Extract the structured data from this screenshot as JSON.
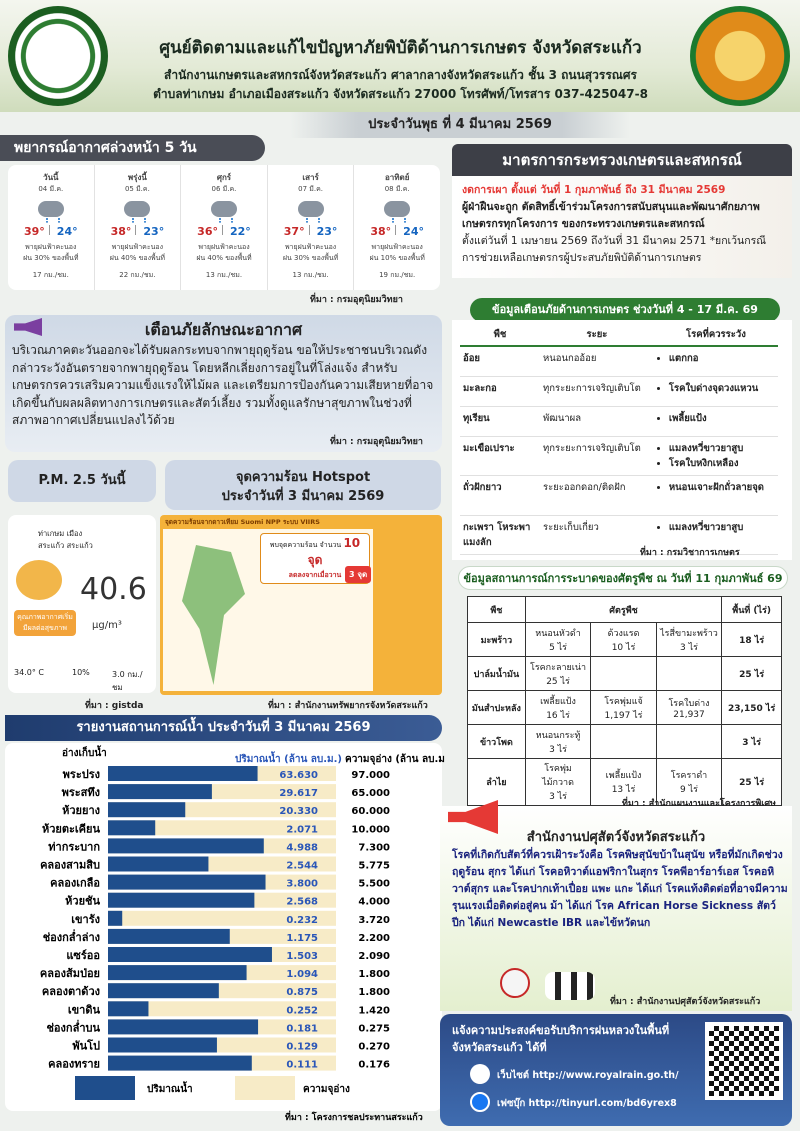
{
  "header": {
    "title": "ศูนย์ติดตามและแก้ไขปัญหาภัยพิบัติด้านการเกษตร จังหวัดสระแก้ว",
    "address_1": "สำนักงานเกษตรและสหกรณ์จังหวัดสระแก้ว ศาลากลางจังหวัดสระแก้ว ชั้น 3 ถนนสุวรรณศร",
    "address_2": "ตำบลท่าเกษม อำเภอเมืองสระแก้ว จังหวัดสระแก้ว 27000 โทรศัพท์/โทรสาร 037-425047-8",
    "date": "ประจำวันพุธ ที่ 4 มีนาคม 2569"
  },
  "forecast": {
    "title": "พยากรณ์อากาศล่วงหน้า 5 วัน",
    "days": [
      {
        "day": "วันนี้",
        "date": "04 มี.ค.",
        "high": "39°",
        "low": "24°",
        "condition": "พายุฝนฟ้าคะนอง",
        "rain": "ฝน 30% ของพื้นที่",
        "wind": "17 กม./ชม."
      },
      {
        "day": "พรุ่งนี้",
        "date": "05 มี.ค.",
        "high": "38°",
        "low": "23°",
        "condition": "พายุฝนฟ้าคะนอง",
        "rain": "ฝน 40% ของพื้นที่",
        "wind": "22 กม./ชม."
      },
      {
        "day": "ศุกร์",
        "date": "06 มี.ค.",
        "high": "36°",
        "low": "22°",
        "condition": "พายุฝนฟ้าคะนอง",
        "rain": "ฝน 40% ของพื้นที่",
        "wind": "13 กม./ชม."
      },
      {
        "day": "เสาร์",
        "date": "07 มี.ค.",
        "high": "37°",
        "low": "23°",
        "condition": "พายุฝนฟ้าคะนอง",
        "rain": "ฝน 30% ของพื้นที่",
        "wind": "13 กม./ชม."
      },
      {
        "day": "อาทิตย์",
        "date": "08 มี.ค.",
        "high": "38°",
        "low": "24°",
        "condition": "พายุฝนฟ้าคะนอง",
        "rain": "ฝน 10% ของพื้นที่",
        "wind": "19 กม./ชม."
      }
    ],
    "source": "ที่มา : กรมอุตุนิยมวิทยา"
  },
  "warning": {
    "title": "เตือนภัยลักษณะอากาศ",
    "text": "บริเวณภาคตะวันออกจะได้รับผลกระทบจากพายุฤดูร้อน ขอให้ประชาชนบริเวณดังกล่าวระวังอันตรายจากพายุฤดูร้อน โดยหลีกเลี่ยงการอยู่ในที่โล่งแจ้ง สำหรับเกษตรกรควรเสริมความแข็งแรงให้ไม้ผล และเตรียมการป้องกันความเสียหายที่อาจเกิดขึ้นกับผลผลิตทางการเกษตรและสัตว์เลี้ยง รวมทั้งดูแลรักษาสุขภาพในช่วงที่สภาพอากาศเปลี่ยนแปลงไว้ด้วย",
    "source": "ที่มา : กรมอุตุนิยมวิทยา"
  },
  "pm25": {
    "title": "P.M. 2.5 วันนี้",
    "location": "ท่าเกษม เมืองสระแก้ว สระแก้ว",
    "value": "40.6",
    "unit": "μg/m³",
    "status": "คุณภาพอากาศเริ่มมีผลต่อสุขภาพ",
    "temp": "34.0° C",
    "humidity": "10%",
    "wind": "3.0 กม./ชม",
    "source": "ที่มา : gistda"
  },
  "hotspot": {
    "title": "จุดความร้อน Hotspot",
    "subtitle": "ประจำวันที่ 3 มีนาคม 2569",
    "map_title": "จุดความร้อนจากดาวเทียม Suomi NPP ระบบ VIIRS",
    "count_text": "พบจุดความร้อน จำนวน",
    "count": "10 จุด",
    "trend": "ลดลงจากเมื่อวาน",
    "province_count": "3 จุด",
    "source": "ที่มา : สำนักงานทรัพยากรจังหวัดสระแก้ว"
  },
  "water": {
    "title": "รายงานสถานการณ์น้ำ ประจำวันที่ 3 มีนาคม 2569",
    "name_header": "อ่างเก็บน้ำ",
    "volume_header": "ปริมาณน้ำ (ล้าน ลบ.ม.)",
    "capacity_header": "ความจุอ่าง (ล้าน ลบ.ม.)",
    "reservoirs": [
      "พระปรง",
      "พระสทึง",
      "ห้วยยาง",
      "ห้วยตะเคียน",
      "ท่ากระบาก",
      "คลองสามสิบ",
      "คลองเกลือ",
      "ห้วยชัน",
      "เขารัง",
      "ช่องกล่ำล่าง",
      "แซร์ออ",
      "คลองส้มป่อย",
      "คลองตาด้วง",
      "เขาดิน",
      "ช่องกล่ำบน",
      "พันโป",
      "คลองทราย"
    ],
    "series": [
      {
        "name": "ปริมาณน้ำ",
        "color": "#1f4e8c",
        "values": [
          63.63,
          29.617,
          20.33,
          2.071,
          4.988,
          2.544,
          3.8,
          2.568,
          0.232,
          1.175,
          1.503,
          1.094,
          0.875,
          0.252,
          0.181,
          0.129,
          0.111
        ],
        "value_labels": [
          "63.630",
          "29.617",
          "20.330",
          "2.071",
          "4.988",
          "2.544",
          "3.800",
          "2.568",
          "0.232",
          "1.175",
          "1.503",
          "1.094",
          "0.875",
          "0.252",
          "0.181",
          "0.129",
          "0.111"
        ]
      },
      {
        "name": "ความจุอ่าง",
        "color": "#f7ebc7",
        "values": [
          97,
          65,
          60,
          10,
          7.3,
          5.775,
          5.5,
          4,
          3.72,
          2.2,
          2.09,
          1.8,
          1.8,
          1.42,
          0.275,
          0.27,
          0.176
        ],
        "value_labels": [
          "97.000",
          "65.000",
          "60.000",
          "10.000",
          "7.300",
          "5.775",
          "5.500",
          "4.000",
          "3.720",
          "2.200",
          "2.090",
          "1.800",
          "1.800",
          "1.420",
          "0.275",
          "0.270",
          "0.176"
        ]
      }
    ],
    "source": "ที่มา : โครงการชลประทานสระแก้ว"
  },
  "ministry": {
    "title": "มาตรการกระทรวงเกษตรและสหกรณ์",
    "highlight": "งดการเผา ตั้งแต่ วันที่ 1 กุมภาพันธ์ ถึง 31 มีนาคม 2569",
    "bold": "ผู้ฝ่าฝืนจะถูก ตัดสิทธิ์เข้าร่วมโครงการสนับสนุนและพัฒนาศักยภาพเกษตรกรทุกโครงการ ของกระทรวงเกษตรและสหกรณ์",
    "text": "ตั้งแต่วันที่ 1 เมษายน 2569 ถึงวันที่ 31 มีนาคม 2571 *ยกเว้นกรณีการช่วยเหลือเกษตรกรผู้ประสบภัยพิบัติด้านการเกษตร"
  },
  "crop_warning": {
    "title": "ข้อมูลเตือนภัยด้านการเกษตร ช่วงวันที่ 4 - 17 มี.ค. 69",
    "headers": [
      "พืช",
      "ระยะ",
      "โรคที่ควรระวัง"
    ],
    "rows": [
      [
        "อ้อย",
        "หนอนกออ้อย",
        [
          "แตกกอ"
        ]
      ],
      [
        "มะละกอ",
        "ทุกระยะการเจริญเติบโต",
        [
          "โรคใบด่างจุดวงแหวน"
        ]
      ],
      [
        "ทุเรียน",
        "พัฒนาผล",
        [
          "เพลี้ยแป้ง"
        ]
      ],
      [
        "มะเขือเปราะ",
        "ทุกระยะการเจริญเติบโต",
        [
          "แมลงหวี่ขาวยาสูบ",
          "โรคใบหงิกเหลือง"
        ]
      ],
      [
        "ถั่วฝักยาว",
        "ระยะออกดอก/ติดฝัก",
        [
          "หนอนเจาะฝักถั่วลายจุด"
        ]
      ],
      [
        "กะเพรา โหระพา แมงลัก",
        "ระยะเก็บเกี่ยว",
        [
          "แมลงหวี่ขาวยาสูบ"
        ]
      ]
    ],
    "source": "ที่มา : กรมวิชาการเกษตร"
  },
  "outbreak": {
    "title": "ข้อมูลสถานการณ์การระบาดของศัตรูพืช ณ วันที่ 11 กุมภาพันธ์ 69",
    "headers": [
      "พืช",
      "ศัตรูพืช",
      "พื้นที่ (ไร่)"
    ],
    "rows": [
      {
        "crop": "มะพร้าว",
        "pests": [
          [
            "หนอนหัวดำ",
            "5 ไร่"
          ],
          [
            "ด้วงแรด",
            "10 ไร่"
          ],
          [
            "ไรสี่ขามะพร้าว",
            "3 ไร่"
          ]
        ],
        "area": "18 ไร่"
      },
      {
        "crop": "ปาล์มน้ำมัน",
        "pests": [
          [
            "โรคกะลายเน่า",
            "25 ไร่"
          ]
        ],
        "area": "25 ไร่"
      },
      {
        "crop": "มันสำปะหลัง",
        "pests": [
          [
            "เพลี้ยแป้ง",
            "16 ไร่"
          ],
          [
            "โรคพุ่มแจ้",
            "1,197 ไร่"
          ],
          [
            "โรคใบด่าง",
            "21,937"
          ]
        ],
        "area": "23,150 ไร่"
      },
      {
        "crop": "ข้าวโพด",
        "pests": [
          [
            "หนอนกระทู้",
            "3 ไร่"
          ]
        ],
        "area": "3 ไร่"
      },
      {
        "crop": "ลำไย",
        "pests": [
          [
            "โรคพุ่มไม้กวาด",
            "3 ไร่"
          ],
          [
            "เพลี้ยแป้ง",
            "13 ไร่"
          ],
          [
            "โรคราดำ",
            "9 ไร่"
          ]
        ],
        "area": "25 ไร่"
      }
    ],
    "source": "ที่มา : สำนักแผนงานและโครงการพิเศษ"
  },
  "livestock": {
    "title": "สำนักงานปศุสัตว์จังหวัดสระแก้ว",
    "text": "โรคที่เกิดกับสัตว์ที่ควรเฝ้าระวังคือ โรคพิษสุนัขบ้าในสุนัข หรือที่มักเกิดช่วงฤดูร้อน สุกร ได้แก่ โรคอหิวาต์แอฟริกาในสุกร โรคพีอาร์อาร์เอส โรคอหิวาต์สุกร และโรคปากเท้าเปื่อย แพะ แกะ ได้แก่ โรคแท้งติดต่อที่อาจมีความรุนแรงเมื่อติดต่อสู่คน ม้า ได้แก่ โรค African Horse Sickness สัตว์ปีก ได้แก่ Newcastle IBR และไข้หวัดนก",
    "source": "ที่มา : สำนักงานปศุสัตว์จังหวัดสระแก้ว"
  },
  "royal_rain": {
    "title": "แจ้งความประสงค์ขอรับบริการฝนหลวงในพื้นที่ จังหวัดสระแก้ว ได้ที่",
    "website": "เว็บไซต์ http://www.royalrain.go.th/",
    "facebook": "เฟซบุ๊ก http://tinyurl.com/bd6yrex8"
  }
}
